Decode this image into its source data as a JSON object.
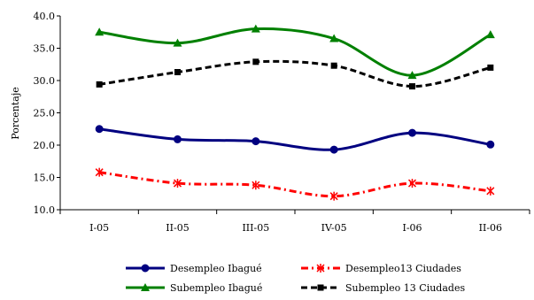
{
  "chart_data": {
    "type": "line",
    "title": "",
    "xlabel": "",
    "ylabel": "Porcentaje",
    "ylim": [
      10.0,
      40.0
    ],
    "yticks": [
      "10.0",
      "15.0",
      "20.0",
      "25.0",
      "30.0",
      "35.0",
      "40.0"
    ],
    "categories": [
      "I-05",
      "II-05",
      "III-05",
      "IV-05",
      "I-06",
      "II-06"
    ],
    "grid": false,
    "legend_placement": "bottom",
    "series": [
      {
        "name": "Desempleo Ibagué",
        "values": [
          22.5,
          20.9,
          20.6,
          19.3,
          21.9,
          20.1
        ],
        "color": "#000080",
        "marker": "circle",
        "dash": "solid"
      },
      {
        "name": "Desempleo13 Ciudades",
        "values": [
          15.8,
          14.1,
          13.8,
          12.1,
          14.1,
          12.9
        ],
        "color": "#ff0000",
        "marker": "asterisk",
        "dash": "dashdot"
      },
      {
        "name": "Subempleo Ibagué",
        "values": [
          37.5,
          35.8,
          38.0,
          36.5,
          30.8,
          37.1
        ],
        "color": "#008000",
        "marker": "triangle",
        "dash": "solid"
      },
      {
        "name": "Subempleo 13 Ciudades",
        "values": [
          29.4,
          31.3,
          32.9,
          32.3,
          29.1,
          32.0
        ],
        "color": "#000000",
        "marker": "square",
        "dash": "dashed"
      }
    ]
  }
}
